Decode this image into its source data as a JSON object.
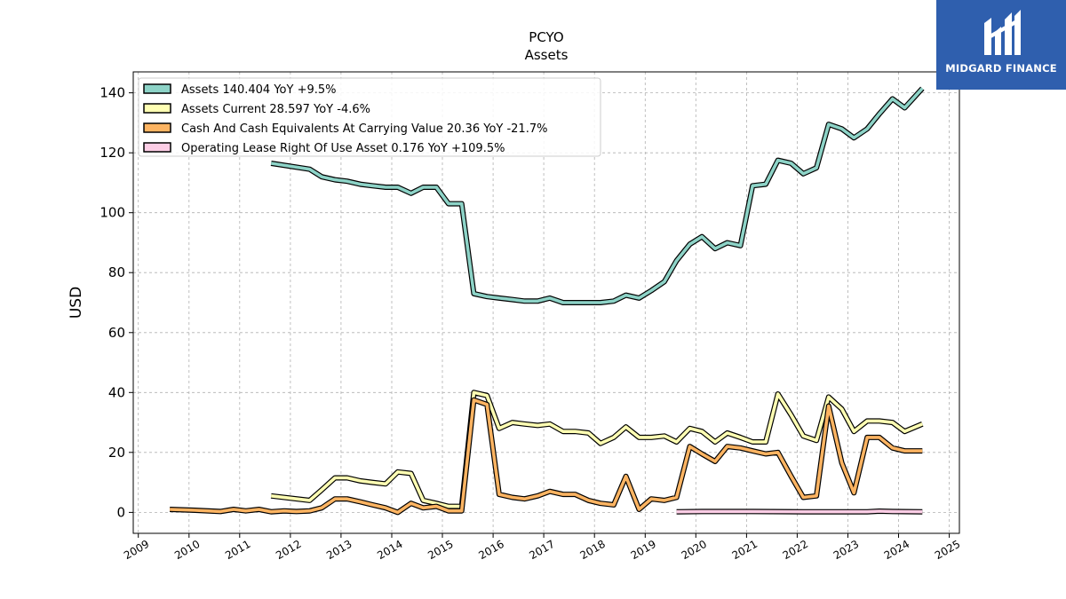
{
  "logo": {
    "text": "MIDGARD FINANCE",
    "color": "#2f5fae"
  },
  "chart_data": {
    "type": "line",
    "title": "PCYO",
    "subtitle": "Assets",
    "xlabel": "",
    "ylabel": "USD",
    "xlim": [
      2008.9,
      2025.2
    ],
    "ylim": [
      -7,
      147
    ],
    "x_ticks": [
      2009,
      2010,
      2011,
      2012,
      2013,
      2014,
      2015,
      2016,
      2017,
      2018,
      2019,
      2020,
      2021,
      2022,
      2023,
      2024,
      2025
    ],
    "y_ticks": [
      0,
      20,
      40,
      60,
      80,
      100,
      120,
      140
    ],
    "grid": true,
    "legend_position": "top-left",
    "series": [
      {
        "name": "Assets",
        "legend": "Assets  140.404 YoY +9.5%",
        "color": "#8dd3c7",
        "points": [
          [
            2011.62,
            116.5
          ],
          [
            2012.38,
            114.5
          ],
          [
            2012.62,
            112
          ],
          [
            2012.88,
            111
          ],
          [
            2013.12,
            110.5
          ],
          [
            2013.38,
            109.5
          ],
          [
            2013.62,
            109
          ],
          [
            2013.88,
            108.5
          ],
          [
            2014.12,
            108.5
          ],
          [
            2014.38,
            106.5
          ],
          [
            2014.62,
            108.5
          ],
          [
            2014.88,
            108.5
          ],
          [
            2015.12,
            103
          ],
          [
            2015.38,
            103
          ],
          [
            2015.62,
            73
          ],
          [
            2015.88,
            72
          ],
          [
            2016.12,
            71.5
          ],
          [
            2016.38,
            71
          ],
          [
            2016.62,
            70.5
          ],
          [
            2016.88,
            70.5
          ],
          [
            2017.12,
            71.5
          ],
          [
            2017.38,
            70
          ],
          [
            2017.62,
            70
          ],
          [
            2017.88,
            70
          ],
          [
            2018.12,
            70
          ],
          [
            2018.38,
            70.5
          ],
          [
            2018.62,
            72.5
          ],
          [
            2018.88,
            71.5
          ],
          [
            2019.12,
            74
          ],
          [
            2019.38,
            77
          ],
          [
            2019.62,
            84
          ],
          [
            2019.88,
            89.5
          ],
          [
            2020.12,
            92
          ],
          [
            2020.38,
            88
          ],
          [
            2020.62,
            90
          ],
          [
            2020.88,
            89
          ],
          [
            2021.12,
            109
          ],
          [
            2021.38,
            109.5
          ],
          [
            2021.62,
            117.5
          ],
          [
            2021.88,
            116.5
          ],
          [
            2022.12,
            113
          ],
          [
            2022.38,
            115
          ],
          [
            2022.62,
            129.5
          ],
          [
            2022.88,
            128
          ],
          [
            2023.12,
            125
          ],
          [
            2023.38,
            128
          ],
          [
            2023.62,
            133
          ],
          [
            2023.88,
            138
          ],
          [
            2024.12,
            135
          ],
          [
            2024.47,
            141.5
          ]
        ]
      },
      {
        "name": "Assets Current",
        "legend": "Assets Current  28.597 YoY -4.6%",
        "color": "#ffffb3",
        "points": [
          [
            2011.62,
            5.5
          ],
          [
            2012.38,
            4
          ],
          [
            2012.62,
            7.5
          ],
          [
            2012.88,
            11.5
          ],
          [
            2013.12,
            11.5
          ],
          [
            2013.38,
            10.5
          ],
          [
            2013.62,
            10
          ],
          [
            2013.88,
            9.5
          ],
          [
            2014.12,
            13.5
          ],
          [
            2014.38,
            13
          ],
          [
            2014.62,
            4
          ],
          [
            2014.88,
            3
          ],
          [
            2015.12,
            2
          ],
          [
            2015.38,
            2
          ],
          [
            2015.62,
            40
          ],
          [
            2015.88,
            39
          ],
          [
            2016.12,
            28
          ],
          [
            2016.38,
            30
          ],
          [
            2016.62,
            29.5
          ],
          [
            2016.88,
            29
          ],
          [
            2017.12,
            29.5
          ],
          [
            2017.38,
            27
          ],
          [
            2017.62,
            27
          ],
          [
            2017.88,
            26.5
          ],
          [
            2018.12,
            23
          ],
          [
            2018.38,
            25
          ],
          [
            2018.62,
            28.5
          ],
          [
            2018.88,
            25
          ],
          [
            2019.12,
            25
          ],
          [
            2019.38,
            25.5
          ],
          [
            2019.62,
            23.5
          ],
          [
            2019.88,
            28
          ],
          [
            2020.12,
            27
          ],
          [
            2020.38,
            23.5
          ],
          [
            2020.62,
            26.5
          ],
          [
            2020.88,
            25
          ],
          [
            2021.12,
            23.5
          ],
          [
            2021.38,
            23.5
          ],
          [
            2021.62,
            39.5
          ],
          [
            2021.88,
            32.5
          ],
          [
            2022.12,
            25.5
          ],
          [
            2022.38,
            24
          ],
          [
            2022.62,
            38.5
          ],
          [
            2022.88,
            34.5
          ],
          [
            2023.12,
            27
          ],
          [
            2023.38,
            30.5
          ],
          [
            2023.62,
            30.5
          ],
          [
            2023.88,
            30
          ],
          [
            2024.12,
            27
          ],
          [
            2024.47,
            29.5
          ]
        ]
      },
      {
        "name": "Cash And Cash Equivalents At Carrying Value",
        "legend": "Cash And Cash Equivalents At Carrying Value  20.36 YoY -21.7%",
        "color": "#fdb462",
        "points": [
          [
            2009.62,
            1
          ],
          [
            2010.12,
            0.7
          ],
          [
            2010.62,
            0.3
          ],
          [
            2010.88,
            1
          ],
          [
            2011.12,
            0.5
          ],
          [
            2011.38,
            1
          ],
          [
            2011.62,
            0.2
          ],
          [
            2011.88,
            0.5
          ],
          [
            2012.12,
            0.3
          ],
          [
            2012.38,
            0.5
          ],
          [
            2012.62,
            1.5
          ],
          [
            2012.88,
            4.5
          ],
          [
            2013.12,
            4.5
          ],
          [
            2013.38,
            3.5
          ],
          [
            2013.62,
            2.5
          ],
          [
            2013.88,
            1.5
          ],
          [
            2014.12,
            0
          ],
          [
            2014.38,
            3
          ],
          [
            2014.62,
            1.5
          ],
          [
            2014.88,
            2
          ],
          [
            2015.12,
            0.5
          ],
          [
            2015.38,
            0.5
          ],
          [
            2015.62,
            37.5
          ],
          [
            2015.88,
            36
          ],
          [
            2016.12,
            6
          ],
          [
            2016.38,
            5
          ],
          [
            2016.62,
            4.5
          ],
          [
            2016.88,
            5.5
          ],
          [
            2017.12,
            7
          ],
          [
            2017.38,
            6
          ],
          [
            2017.62,
            6
          ],
          [
            2017.88,
            4
          ],
          [
            2018.12,
            3
          ],
          [
            2018.38,
            2.5
          ],
          [
            2018.62,
            12
          ],
          [
            2018.88,
            1
          ],
          [
            2019.12,
            4.5
          ],
          [
            2019.38,
            4
          ],
          [
            2019.62,
            5
          ],
          [
            2019.88,
            22
          ],
          [
            2020.12,
            19.5
          ],
          [
            2020.38,
            17
          ],
          [
            2020.62,
            22
          ],
          [
            2020.88,
            21.5
          ],
          [
            2021.12,
            20.5
          ],
          [
            2021.38,
            19.5
          ],
          [
            2021.62,
            20
          ],
          [
            2021.88,
            12
          ],
          [
            2022.12,
            5
          ],
          [
            2022.38,
            5.5
          ],
          [
            2022.62,
            35.5
          ],
          [
            2022.88,
            16.5
          ],
          [
            2023.12,
            6.5
          ],
          [
            2023.38,
            25
          ],
          [
            2023.62,
            25
          ],
          [
            2023.88,
            21.5
          ],
          [
            2024.12,
            20.5
          ],
          [
            2024.47,
            20.5
          ]
        ]
      },
      {
        "name": "Operating Lease Right Of Use Asset",
        "legend": "Operating Lease Right Of Use Asset  0.176 YoY +109.5%",
        "color": "#fccde5",
        "points": [
          [
            2019.62,
            0.2
          ],
          [
            2020.12,
            0.3
          ],
          [
            2021.12,
            0.3
          ],
          [
            2022.12,
            0.2
          ],
          [
            2022.62,
            0.2
          ],
          [
            2023.38,
            0.2
          ],
          [
            2023.62,
            0.4
          ],
          [
            2023.88,
            0.3
          ],
          [
            2024.47,
            0.2
          ]
        ]
      }
    ]
  }
}
